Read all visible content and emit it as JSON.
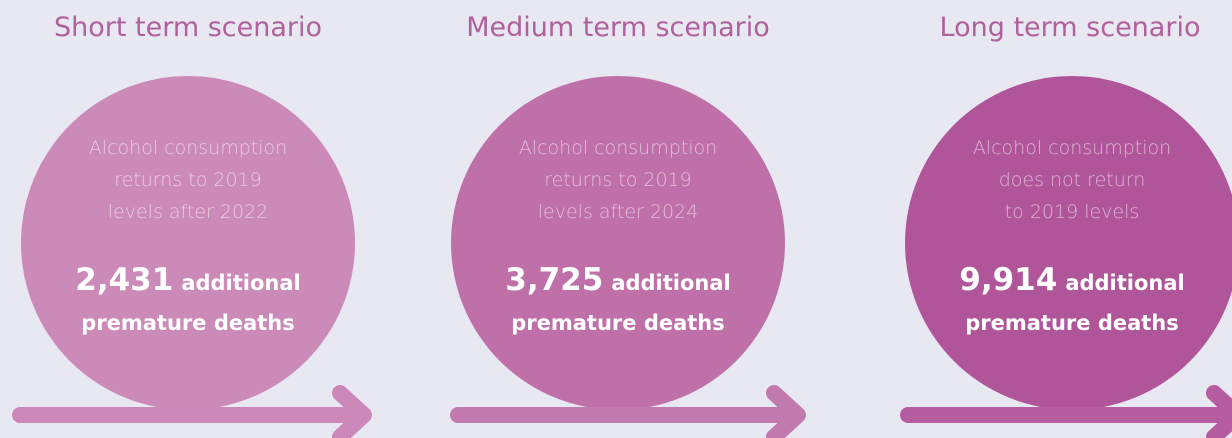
{
  "scenarios": [
    {
      "title": "Short term scenario",
      "description": [
        "Alcohol consumption",
        "returns to 2019",
        "levels after 2022"
      ],
      "number": "2,431",
      "label": [
        "additional",
        "premature deaths"
      ]
    },
    {
      "title": "Medium term scenario",
      "description": [
        "Alcohol consumption",
        "returns to 2019",
        "levels after 2024"
      ],
      "number": "3,725",
      "label": [
        "additional",
        "premature deaths"
      ]
    },
    {
      "title": "Long term scenario",
      "description": [
        "Alcohol consumption",
        "does not return",
        "to 2019 levels"
      ],
      "number": "9,914",
      "label": [
        "additional",
        "premature deaths"
      ]
    }
  ]
}
